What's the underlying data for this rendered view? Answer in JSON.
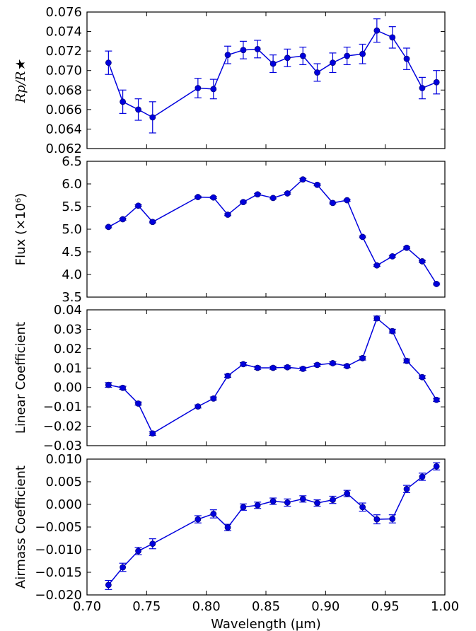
{
  "figure": {
    "xlabel": "Wavelength (μm)",
    "color": "#0000dd",
    "x_ticks": [
      "0.70",
      "0.75",
      "0.80",
      "0.85",
      "0.90",
      "0.95",
      "1.00"
    ]
  },
  "chart_data": [
    {
      "type": "scatter",
      "ylabel": "Rp/R★",
      "xlim": [
        0.7,
        1.0
      ],
      "ylim": [
        0.062,
        0.076
      ],
      "y_ticks": [
        "0.062",
        "0.064",
        "0.066",
        "0.068",
        "0.070",
        "0.072",
        "0.074",
        "0.076"
      ],
      "x": [
        0.718,
        0.73,
        0.743,
        0.755,
        0.793,
        0.806,
        0.818,
        0.831,
        0.843,
        0.856,
        0.868,
        0.881,
        0.893,
        0.906,
        0.918,
        0.931,
        0.943,
        0.956,
        0.968,
        0.981,
        0.993
      ],
      "y": [
        0.0708,
        0.0668,
        0.066,
        0.0652,
        0.0682,
        0.0681,
        0.0716,
        0.0721,
        0.0722,
        0.0707,
        0.0713,
        0.0715,
        0.0698,
        0.0708,
        0.0715,
        0.0717,
        0.0741,
        0.0734,
        0.0712,
        0.0682,
        0.0688
      ],
      "yerr": [
        0.0012,
        0.0012,
        0.0011,
        0.0016,
        0.001,
        0.001,
        0.0009,
        0.0009,
        0.0009,
        0.0009,
        0.0009,
        0.0009,
        0.0009,
        0.001,
        0.0009,
        0.001,
        0.0012,
        0.0011,
        0.0011,
        0.0011,
        0.0012
      ]
    },
    {
      "type": "scatter",
      "ylabel": "Flux (×10⁶)",
      "xlim": [
        0.7,
        1.0
      ],
      "ylim": [
        3.5,
        6.5
      ],
      "y_ticks": [
        "3.5",
        "4.0",
        "4.5",
        "5.0",
        "5.5",
        "6.0",
        "6.5"
      ],
      "x": [
        0.718,
        0.73,
        0.743,
        0.755,
        0.793,
        0.806,
        0.818,
        0.831,
        0.843,
        0.856,
        0.868,
        0.881,
        0.893,
        0.906,
        0.918,
        0.931,
        0.943,
        0.956,
        0.968,
        0.981,
        0.993
      ],
      "y": [
        5.05,
        5.22,
        5.52,
        5.16,
        5.71,
        5.7,
        5.32,
        5.6,
        5.77,
        5.69,
        5.79,
        6.1,
        5.98,
        5.58,
        5.64,
        4.83,
        4.2,
        4.4,
        4.59,
        4.29,
        3.79
      ],
      "yerr": [
        0.02,
        0.02,
        0.02,
        0.02,
        0.02,
        0.02,
        0.02,
        0.02,
        0.02,
        0.02,
        0.02,
        0.02,
        0.02,
        0.02,
        0.02,
        0.02,
        0.02,
        0.02,
        0.02,
        0.02,
        0.02
      ]
    },
    {
      "type": "scatter",
      "ylabel": "Linear Coefficient",
      "xlim": [
        0.7,
        1.0
      ],
      "ylim": [
        -0.03,
        0.04
      ],
      "y_ticks": [
        "−0.03",
        "−0.02",
        "−0.01",
        "0.00",
        "0.01",
        "0.02",
        "0.03",
        "0.04"
      ],
      "x": [
        0.718,
        0.73,
        0.743,
        0.755,
        0.793,
        0.806,
        0.818,
        0.831,
        0.843,
        0.856,
        0.868,
        0.881,
        0.893,
        0.906,
        0.918,
        0.931,
        0.943,
        0.956,
        0.968,
        0.981,
        0.993
      ],
      "y": [
        0.0013,
        -0.0002,
        -0.0083,
        -0.0237,
        -0.0098,
        -0.0057,
        0.006,
        0.012,
        0.0101,
        0.0101,
        0.0104,
        0.0096,
        0.0116,
        0.0125,
        0.011,
        0.0151,
        0.0356,
        0.029,
        0.0137,
        0.0053,
        -0.0064
      ],
      "yerr": [
        0.0012,
        0.0008,
        0.0008,
        0.001,
        0.0008,
        0.0008,
        0.0008,
        0.0008,
        0.0008,
        0.0008,
        0.0008,
        0.0008,
        0.0008,
        0.0008,
        0.0008,
        0.001,
        0.0012,
        0.001,
        0.001,
        0.0008,
        0.0008
      ]
    },
    {
      "type": "scatter",
      "ylabel": "Airmass Coefficient",
      "xlim": [
        0.7,
        1.0
      ],
      "ylim": [
        -0.02,
        0.01
      ],
      "y_ticks": [
        "−0.020",
        "−0.015",
        "−0.010",
        "−0.005",
        "0.000",
        "0.005",
        "0.010"
      ],
      "x": [
        0.718,
        0.73,
        0.743,
        0.755,
        0.793,
        0.806,
        0.818,
        0.831,
        0.843,
        0.856,
        0.868,
        0.881,
        0.893,
        0.906,
        0.918,
        0.931,
        0.943,
        0.956,
        0.968,
        0.981,
        0.993
      ],
      "y": [
        -0.0178,
        -0.0139,
        -0.0103,
        -0.0087,
        -0.0033,
        -0.0021,
        -0.0051,
        -0.0006,
        -0.0002,
        0.0007,
        0.0004,
        0.0012,
        0.0003,
        0.001,
        0.0024,
        -0.0006,
        -0.0033,
        -0.0032,
        0.0034,
        0.0061,
        0.0084
      ],
      "yerr": [
        0.001,
        0.0009,
        0.0008,
        0.0011,
        0.0008,
        0.0009,
        0.0007,
        0.0007,
        0.0007,
        0.0007,
        0.0008,
        0.0007,
        0.0007,
        0.0008,
        0.0007,
        0.0009,
        0.001,
        0.0009,
        0.0008,
        0.0008,
        0.0008
      ]
    }
  ]
}
